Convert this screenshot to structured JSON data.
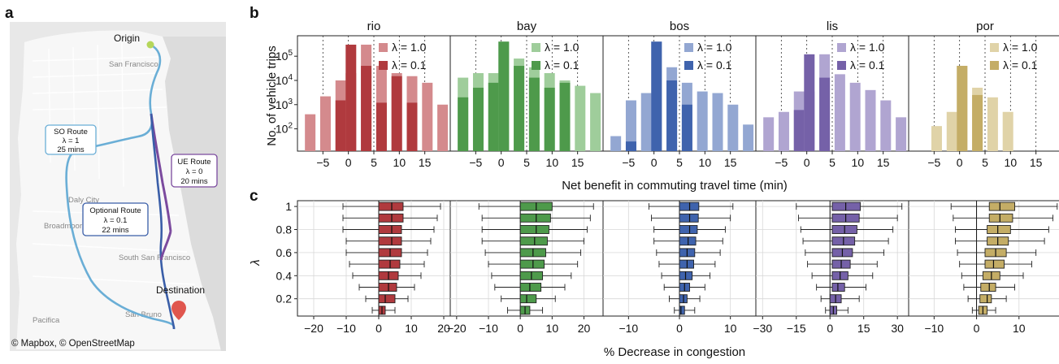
{
  "panels": {
    "a": "a",
    "b": "b",
    "c": "c"
  },
  "map": {
    "credit": "© Mapbox, © OpenStreetMap",
    "origin": "Origin",
    "destination": "Destination",
    "place_labels": [
      "San Francisco",
      "Daly City",
      "Broadmoor",
      "South San Francisco",
      "Pacifica",
      "San Bruno"
    ],
    "routes": [
      {
        "name": "SO Route",
        "lambda": "λ = 1",
        "time": "25 mins",
        "color": "#6aaed6"
      },
      {
        "name": "UE Route",
        "lambda": "λ = 0",
        "time": "20 mins",
        "color": "#7b4a9e"
      },
      {
        "name": "Optional Route",
        "lambda": "λ = 0.1",
        "time": "22 mins",
        "color": "#3a5ea8"
      }
    ]
  },
  "chart_data": [
    {
      "type": "bar",
      "xlabel": "Net benefit in commuting travel time (min)",
      "ylabel": "No. of vehicle trips",
      "y_scale": "log",
      "y_ticks": [
        "10^2",
        "10^3",
        "10^4",
        "10^5"
      ],
      "x_ticks": [
        "−5",
        "0",
        "5",
        "10",
        "15"
      ],
      "x_tick_values": [
        -5,
        0,
        5,
        10,
        15
      ],
      "x_range": [
        -10,
        20
      ],
      "legend_labels": [
        "λ = 1.0",
        "λ = 0.1"
      ],
      "bin_centers": [
        -7.5,
        -4.5,
        -1.5,
        0.5,
        3.5,
        6.5,
        9.5,
        12.5,
        15.5,
        18.5
      ],
      "cities": [
        {
          "name": "rio",
          "color_dark": "#b03a3e",
          "color_light": "#d48a8d",
          "series": [
            {
              "name": "λ = 1.0",
              "values": [
                400,
                2200,
                10000,
                20000,
                300000,
                40000,
                20000,
                15000,
                8000,
                1000
              ]
            },
            {
              "name": "λ = 0.1",
              "values": [
                0,
                0,
                1500,
                300000,
                40000,
                1200,
                15000,
                1200,
                0,
                0
              ]
            }
          ]
        },
        {
          "name": "bay",
          "color_dark": "#4e9a4b",
          "color_light": "#9fcd9b",
          "series": [
            {
              "name": "λ = 1.0",
              "values": [
                13000,
                20000,
                20000,
                400000,
                80000,
                35000,
                20000,
                10000,
                6000,
                3000
              ]
            },
            {
              "name": "λ = 0.1",
              "values": [
                2000,
                5000,
                8000,
                400000,
                40000,
                13000,
                5000,
                8000,
                0,
                0
              ]
            }
          ]
        },
        {
          "name": "bos",
          "color_dark": "#3f63ad",
          "color_light": "#93a7d2",
          "series": [
            {
              "name": "λ = 1.0",
              "values": [
                50,
                1500,
                3000,
                400000,
                35000,
                8000,
                3500,
                3000,
                1000,
                150
              ]
            },
            {
              "name": "λ = 0.1",
              "values": [
                0,
                30,
                0,
                400000,
                10000,
                1000,
                0,
                0,
                0,
                0
              ]
            }
          ]
        },
        {
          "name": "lis",
          "color_dark": "#7561a8",
          "color_light": "#b0a5d1",
          "series": [
            {
              "name": "λ = 1.0",
              "values": [
                300,
                500,
                3500,
                3500,
                120000,
                18000,
                8000,
                4000,
                1500,
                300
              ]
            },
            {
              "name": "λ = 0.1",
              "values": [
                0,
                0,
                600,
                120000,
                13000,
                0,
                0,
                0,
                0,
                0
              ]
            }
          ]
        },
        {
          "name": "por",
          "color_dark": "#c4ad66",
          "color_light": "#e0d3a8",
          "series": [
            {
              "name": "λ = 1.0",
              "values": [
                12,
                130,
                500,
                40000,
                5000,
                2000,
                500,
                0,
                0,
                0
              ]
            },
            {
              "name": "λ = 0.1",
              "values": [
                0,
                0,
                0,
                40000,
                2500,
                0,
                0,
                0,
                0,
                0
              ]
            }
          ]
        }
      ]
    },
    {
      "type": "boxplot",
      "xlabel": "% Decrease in congestion",
      "ylabel": "λ",
      "y_ticks": [
        "0.2",
        "0.4",
        "0.6",
        "0.8",
        "1"
      ],
      "y_tick_values": [
        0.2,
        0.4,
        0.6,
        0.8,
        1.0
      ],
      "lambdas": [
        0.1,
        0.2,
        0.3,
        0.4,
        0.5,
        0.6,
        0.7,
        0.8,
        0.9,
        1.0
      ],
      "cities": [
        {
          "name": "rio",
          "color": "#b03a3e",
          "xlim": [
            -25,
            22
          ],
          "x_ticks": [
            "−20",
            "−10",
            "0",
            "10",
            "20"
          ],
          "x_tick_values": [
            -20,
            -10,
            0,
            10,
            20
          ],
          "boxes": [
            {
              "lo": -2,
              "q1": 0,
              "med": 1,
              "q3": 2,
              "hi": 5
            },
            {
              "lo": -4,
              "q1": 0,
              "med": 2,
              "q3": 5,
              "hi": 9
            },
            {
              "lo": -6,
              "q1": 0,
              "med": 3,
              "q3": 5.5,
              "hi": 11
            },
            {
              "lo": -8,
              "q1": 0,
              "med": 3,
              "q3": 6,
              "hi": 13
            },
            {
              "lo": -9,
              "q1": 0,
              "med": 3.5,
              "q3": 6.5,
              "hi": 14
            },
            {
              "lo": -10,
              "q1": 0,
              "med": 3.5,
              "q3": 7,
              "hi": 15
            },
            {
              "lo": -10,
              "q1": 0,
              "med": 4,
              "q3": 7,
              "hi": 16
            },
            {
              "lo": -11,
              "q1": 0,
              "med": 4,
              "q3": 7,
              "hi": 17
            },
            {
              "lo": -11,
              "q1": 0,
              "med": 4,
              "q3": 7.5,
              "hi": 18
            },
            {
              "lo": -11,
              "q1": 0,
              "med": 4,
              "q3": 7.5,
              "hi": 19
            }
          ]
        },
        {
          "name": "bay",
          "color": "#4e9a4b",
          "xlim": [
            -22,
            26
          ],
          "x_ticks": [
            "−20",
            "−10",
            "0",
            "10",
            "20"
          ],
          "x_tick_values": [
            -20,
            -10,
            0,
            10,
            20
          ],
          "boxes": [
            {
              "lo": -4,
              "q1": 0,
              "med": 1.5,
              "q3": 3,
              "hi": 7
            },
            {
              "lo": -6,
              "q1": 0,
              "med": 2,
              "q3": 5,
              "hi": 11
            },
            {
              "lo": -8,
              "q1": 0,
              "med": 3,
              "q3": 6.5,
              "hi": 14
            },
            {
              "lo": -9,
              "q1": 0,
              "med": 3.5,
              "q3": 7,
              "hi": 16
            },
            {
              "lo": -10,
              "q1": 0,
              "med": 4,
              "q3": 7.5,
              "hi": 18
            },
            {
              "lo": -11,
              "q1": 0,
              "med": 4,
              "q3": 8,
              "hi": 19
            },
            {
              "lo": -12,
              "q1": 0,
              "med": 4.5,
              "q3": 8.5,
              "hi": 20
            },
            {
              "lo": -12,
              "q1": 0,
              "med": 5,
              "q3": 9,
              "hi": 21
            },
            {
              "lo": -12,
              "q1": 0,
              "med": 5,
              "q3": 9.5,
              "hi": 22
            },
            {
              "lo": -13,
              "q1": 0,
              "med": 5,
              "q3": 10,
              "hi": 23
            }
          ]
        },
        {
          "name": "bos",
          "color": "#3f63ad",
          "xlim": [
            -15,
            15
          ],
          "x_ticks": [
            "−10",
            "0",
            "10"
          ],
          "x_tick_values": [
            -10,
            0,
            10
          ],
          "boxes": [
            {
              "lo": -1,
              "q1": 0,
              "med": 0.3,
              "q3": 1,
              "hi": 3
            },
            {
              "lo": -2,
              "q1": 0,
              "med": 0.8,
              "q3": 1.5,
              "hi": 4
            },
            {
              "lo": -3,
              "q1": 0,
              "med": 1,
              "q3": 2,
              "hi": 5
            },
            {
              "lo": -3.5,
              "q1": 0,
              "med": 1.2,
              "q3": 2.5,
              "hi": 6
            },
            {
              "lo": -4,
              "q1": 0,
              "med": 1.5,
              "q3": 2.8,
              "hi": 7
            },
            {
              "lo": -4.5,
              "q1": 0,
              "med": 1.5,
              "q3": 3,
              "hi": 8
            },
            {
              "lo": -5,
              "q1": 0,
              "med": 1.7,
              "q3": 3.2,
              "hi": 8.5
            },
            {
              "lo": -5,
              "q1": 0,
              "med": 2,
              "q3": 3.5,
              "hi": 9
            },
            {
              "lo": -5.5,
              "q1": 0,
              "med": 2,
              "q3": 3.7,
              "hi": 10
            },
            {
              "lo": -6,
              "q1": 0,
              "med": 2,
              "q3": 3.8,
              "hi": 10.5
            }
          ]
        },
        {
          "name": "lis",
          "color": "#7561a8",
          "xlim": [
            -33,
            35
          ],
          "x_ticks": [
            "−30",
            "−15",
            "0",
            "15",
            "30"
          ],
          "x_tick_values": [
            -30,
            -15,
            0,
            15,
            30
          ],
          "boxes": [
            {
              "lo": -2,
              "q1": 0,
              "med": 1.5,
              "q3": 3,
              "hi": 8
            },
            {
              "lo": -4,
              "q1": 0,
              "med": 2.5,
              "q3": 5,
              "hi": 13
            },
            {
              "lo": -6,
              "q1": 1,
              "med": 3.5,
              "q3": 6.5,
              "hi": 16
            },
            {
              "lo": -8,
              "q1": 1,
              "med": 4.5,
              "q3": 8,
              "hi": 19
            },
            {
              "lo": -10,
              "q1": 1,
              "med": 5,
              "q3": 9,
              "hi": 21
            },
            {
              "lo": -11,
              "q1": 1,
              "med": 5.5,
              "q3": 10,
              "hi": 24
            },
            {
              "lo": -12,
              "q1": 1,
              "med": 6,
              "q3": 11,
              "hi": 26
            },
            {
              "lo": -13,
              "q1": 1,
              "med": 6.5,
              "q3": 12,
              "hi": 28
            },
            {
              "lo": -14,
              "q1": 1,
              "med": 7,
              "q3": 13,
              "hi": 30
            },
            {
              "lo": -15,
              "q1": 1,
              "med": 7,
              "q3": 13.5,
              "hi": 32
            }
          ]
        },
        {
          "name": "por",
          "color": "#c4ad66",
          "xlim": [
            -16,
            20
          ],
          "x_ticks": [
            "−10",
            "0",
            "10"
          ],
          "x_tick_values": [
            -10,
            0,
            10
          ],
          "boxes": [
            {
              "lo": -1,
              "q1": 0.5,
              "med": 1.5,
              "q3": 2.5,
              "hi": 4.5
            },
            {
              "lo": -2,
              "q1": 0.8,
              "med": 2.5,
              "q3": 3.5,
              "hi": 7
            },
            {
              "lo": -3,
              "q1": 1,
              "med": 3,
              "q3": 4.5,
              "hi": 9
            },
            {
              "lo": -3.5,
              "q1": 1.5,
              "med": 3.5,
              "q3": 5.5,
              "hi": 11
            },
            {
              "lo": -4,
              "q1": 2,
              "med": 4,
              "q3": 6.5,
              "hi": 13
            },
            {
              "lo": -4.5,
              "q1": 2,
              "med": 4.5,
              "q3": 7,
              "hi": 14
            },
            {
              "lo": -5,
              "q1": 2.5,
              "med": 5,
              "q3": 7.5,
              "hi": 16
            },
            {
              "lo": -5,
              "q1": 2.5,
              "med": 5,
              "q3": 8,
              "hi": 17
            },
            {
              "lo": -5.5,
              "q1": 3,
              "med": 5.5,
              "q3": 8.5,
              "hi": 18
            },
            {
              "lo": -6,
              "q1": 3,
              "med": 5.5,
              "q3": 9,
              "hi": 19
            }
          ]
        }
      ]
    }
  ]
}
